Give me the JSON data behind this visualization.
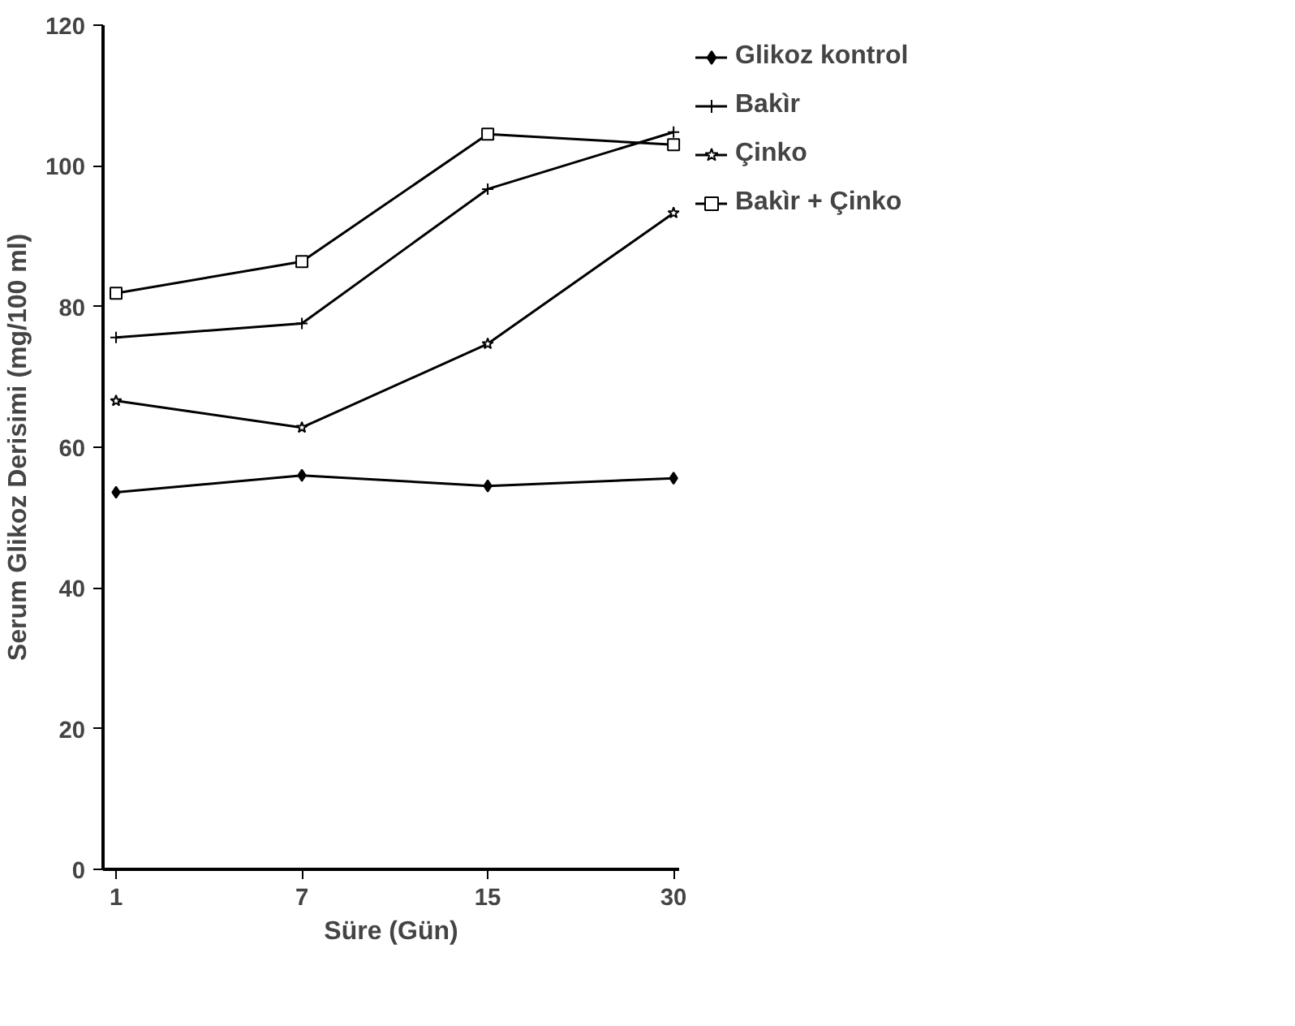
{
  "chart_data": {
    "type": "line",
    "xlabel": "Süre (Gün)",
    "ylabel": "Serum Glikoz Derisimi (mg/100 ml)",
    "categories": [
      "1",
      "7",
      "15",
      "30"
    ],
    "ylim": [
      0,
      120
    ],
    "yticks": [
      0,
      20,
      40,
      60,
      80,
      100,
      120
    ],
    "grid": false,
    "legend": "top right",
    "series": [
      {
        "name": "Glikoz kontrol",
        "color": "#000000",
        "marker": "diamond",
        "values": [
          53.6,
          56,
          54.5,
          55.6
        ]
      },
      {
        "name": "Bakìr",
        "color": "#000000",
        "marker": "cross",
        "values": [
          75.6,
          77.6,
          96.7,
          104.8
        ]
      },
      {
        "name": "Çinko",
        "color": "#000000",
        "marker": "star",
        "values": [
          66.6,
          62.8,
          74.7,
          93.3
        ]
      },
      {
        "name": "Bakìr + Çinko",
        "color": "#000000",
        "marker": "square",
        "values": [
          81.9,
          86.4,
          104.5,
          103
        ]
      }
    ]
  }
}
